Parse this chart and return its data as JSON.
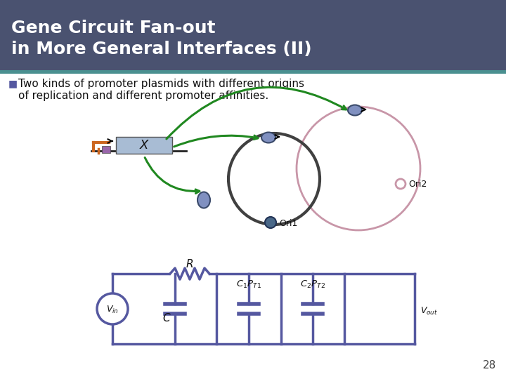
{
  "title_line1": "Gene Circuit Fan-out",
  "title_line2": "in More General Interfaces (II)",
  "title_bg_color": "#4a5270",
  "title_text_color": "#ffffff",
  "accent_bar_color": "#4a9090",
  "page_number": "28",
  "circuit_color": "#5558a0",
  "plasmid1_color": "#404040",
  "plasmid2_color": "#c896a8",
  "arrow_color": "#208820",
  "protein_color": "#8090c0",
  "ori1_color": "#4a6888",
  "ori2_color": "#c896a8",
  "gene_box_color": "#a8bcd4",
  "promoter_orange": "#cc6620",
  "promoter_purple": "#9966aa",
  "dna_color": "#222222",
  "text_color": "#111111"
}
